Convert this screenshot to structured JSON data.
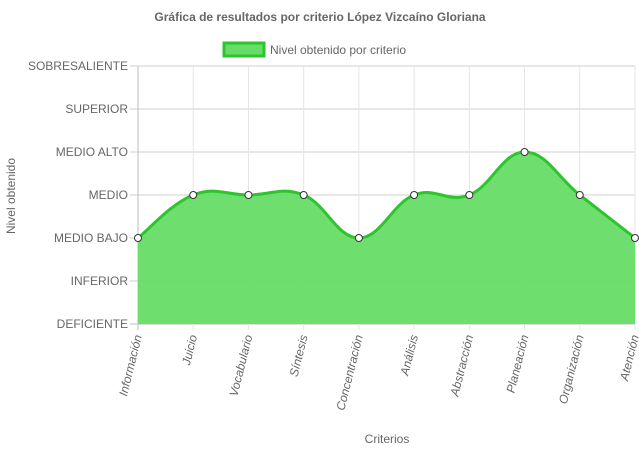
{
  "chart_data": {
    "type": "area",
    "title": "Gráfica de resultados por criterio López Vizcaíno Gloriana",
    "xlabel": "Criterios",
    "ylabel": "Nivel obtenido",
    "categories": [
      "Información",
      "Juicio",
      "Vocabulario",
      "Síntesis",
      "Concentración",
      "Análisis",
      "Abstracción",
      "Planeación",
      "Organización",
      "Atención"
    ],
    "y_levels": [
      "DEFICIENTE",
      "INFERIOR",
      "MEDIO BAJO",
      "MEDIO",
      "MEDIO ALTO",
      "SUPERIOR",
      "SOBRESALIENTE"
    ],
    "series": [
      {
        "name": "Nivel obtenido por criterio",
        "values": [
          2,
          3,
          3,
          3,
          2,
          3,
          3,
          4,
          3,
          2
        ],
        "value_labels": [
          "MEDIO BAJO",
          "MEDIO",
          "MEDIO",
          "MEDIO",
          "MEDIO BAJO",
          "MEDIO",
          "MEDIO",
          "MEDIO ALTO",
          "MEDIO",
          "MEDIO BAJO"
        ]
      }
    ],
    "ylim": [
      0,
      6
    ],
    "grid": true,
    "legend_position": "top",
    "colors": {
      "fill": "#66dd66",
      "line": "#2ec42e",
      "grid": "#e5e5e5",
      "axis": "#bdbdbd",
      "text": "#666666"
    }
  }
}
